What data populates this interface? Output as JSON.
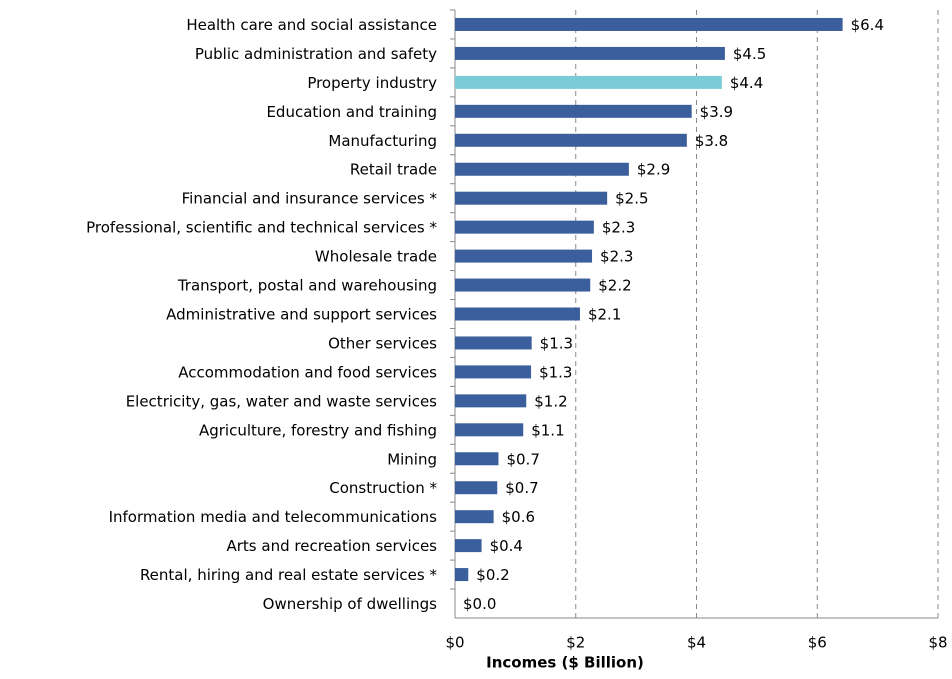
{
  "chart_data": {
    "type": "barh",
    "xlabel": "Incomes ($ Billion)",
    "categories": [
      "Health care and social assistance",
      "Public administration and safety",
      "Property industry",
      "Education and training",
      "Manufacturing",
      "Retail trade",
      "Financial and insurance services *",
      "Professional, scientific and technical services *",
      "Wholesale trade",
      "Transport, postal and warehousing",
      "Administrative and support services",
      "Other services",
      "Accommodation and food services",
      "Electricity, gas, water and waste services",
      "Agriculture, forestry and fishing",
      "Mining",
      "Construction *",
      "Information media and telecommunications",
      "Arts and recreation services",
      "Rental, hiring and real estate services *",
      "Ownership of dwellings"
    ],
    "values": [
      6.42,
      4.47,
      4.42,
      3.92,
      3.84,
      2.88,
      2.52,
      2.3,
      2.27,
      2.24,
      2.07,
      1.27,
      1.26,
      1.18,
      1.13,
      0.72,
      0.7,
      0.64,
      0.44,
      0.22,
      0
    ],
    "value_labels": [
      "$6.4",
      "$4.5",
      "$4.4",
      "$3.9",
      "$3.8",
      "$2.9",
      "$2.5",
      "$2.3",
      "$2.3",
      "$2.2",
      "$2.1",
      "$1.3",
      "$1.3",
      "$1.2",
      "$1.1",
      "$0.7",
      "$0.7",
      "$0.6",
      "$0.4",
      "$0.2",
      "$0.0"
    ],
    "colors": [
      "#3b5f9c",
      "#3b5f9c",
      "#7ccbd8",
      "#3b5f9c",
      "#3b5f9c",
      "#3b5f9c",
      "#3b5f9c",
      "#3b5f9c",
      "#3b5f9c",
      "#3b5f9c",
      "#3b5f9c",
      "#3b5f9c",
      "#3b5f9c",
      "#3b5f9c",
      "#3b5f9c",
      "#3b5f9c",
      "#3b5f9c",
      "#3b5f9c",
      "#3b5f9c",
      "#3b5f9c",
      "#3b5f9c"
    ],
    "xlim": [
      0,
      8
    ],
    "xticks": [
      {
        "value": 0,
        "label": "$0"
      },
      {
        "value": 2,
        "label": "$2"
      },
      {
        "value": 4,
        "label": "$4"
      },
      {
        "value": 6,
        "label": "$6"
      },
      {
        "value": 8,
        "label": "$8"
      }
    ],
    "grid": true
  }
}
